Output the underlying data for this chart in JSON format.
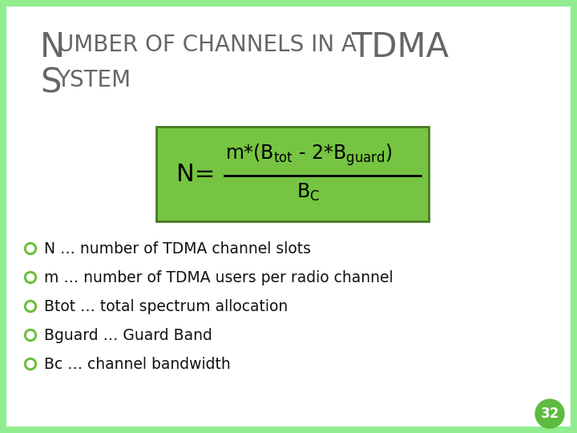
{
  "bg_color": "#ffffff",
  "slide_border_color": "#90EE90",
  "formula_box_color": "#76C442",
  "formula_box_border": "#4a7a20",
  "bullet_color": "#6abf3a",
  "bullet_items": [
    "N … number of TDMA channel slots",
    "m … number of TDMA users per radio channel",
    "Btot … total spectrum allocation",
    "Bguard … Guard Band",
    "Bc … channel bandwidth"
  ],
  "page_number": "32",
  "page_circle_color": "#5DBB3F",
  "title_color": "#666666",
  "text_color": "#111111"
}
